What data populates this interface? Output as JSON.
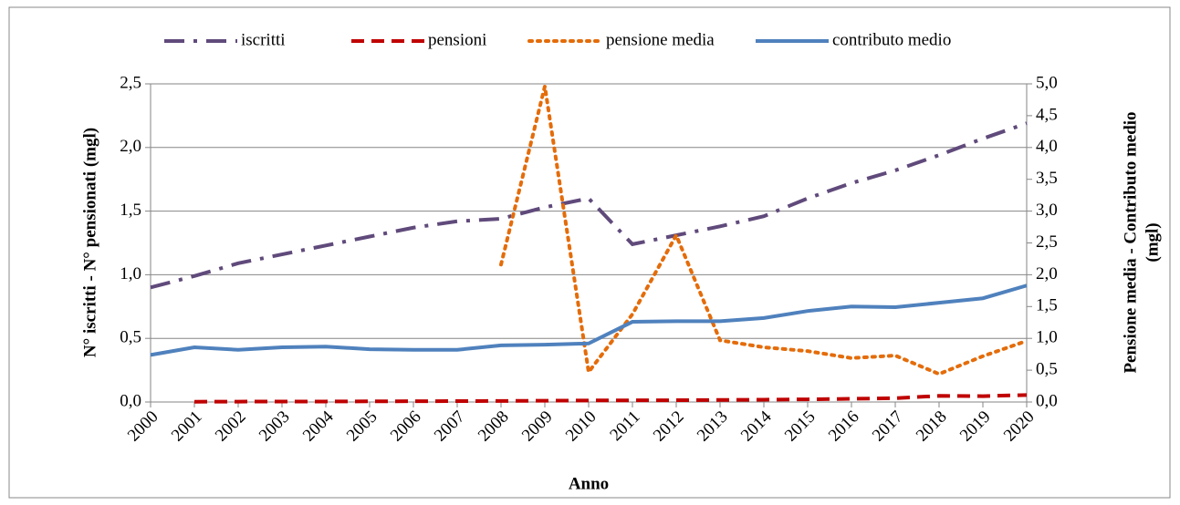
{
  "chart_data": {
    "type": "line",
    "categories": [
      "2000",
      "2001",
      "2002",
      "2003",
      "2004",
      "2005",
      "2006",
      "2007",
      "2008",
      "2009",
      "2010",
      "2011",
      "2012",
      "2013",
      "2014",
      "2015",
      "2016",
      "2017",
      "2018",
      "2019",
      "2020"
    ],
    "series": [
      {
        "name": "iscritti",
        "color": "#604a7b",
        "dash": "22 10 4 10",
        "axis": "y",
        "values": [
          0.9,
          0.99,
          1.09,
          1.16,
          1.23,
          1.3,
          1.37,
          1.42,
          1.44,
          1.53,
          1.6,
          1.24,
          1.31,
          1.38,
          1.46,
          1.6,
          1.72,
          1.82,
          1.94,
          2.07,
          2.19
        ]
      },
      {
        "name": "pensioni",
        "color": "#c00000",
        "dash": "14 8",
        "axis": "y",
        "values": [
          null,
          0.002,
          0.003,
          0.004,
          0.004,
          0.005,
          0.006,
          0.007,
          0.008,
          0.01,
          0.012,
          0.013,
          0.014,
          0.016,
          0.018,
          0.021,
          0.025,
          0.03,
          0.048,
          0.046,
          0.055
        ]
      },
      {
        "name": "pensione media",
        "color": "#e46c0a",
        "dash": "3 6",
        "axis": "y2",
        "values": [
          null,
          null,
          null,
          null,
          null,
          null,
          null,
          null,
          2.16,
          4.96,
          0.47,
          1.38,
          2.62,
          0.97,
          0.86,
          0.8,
          0.69,
          0.73,
          0.44,
          0.72,
          0.96
        ]
      },
      {
        "name": "contributo medio",
        "color": "#4f81bd",
        "dash": "none",
        "axis": "y2",
        "values": [
          0.74,
          0.86,
          0.82,
          0.86,
          0.87,
          0.83,
          0.82,
          0.82,
          0.89,
          0.9,
          0.92,
          1.26,
          1.27,
          1.27,
          1.32,
          1.43,
          1.5,
          1.49,
          1.56,
          1.63,
          1.83
        ]
      }
    ],
    "xlabel": "Anno",
    "ylabel": "N° iscritti - N° pensionati (mgl)",
    "y2label": [
      "Pensione media - Contributo medio",
      "(mgl)"
    ],
    "ylim": [
      0,
      2.5
    ],
    "yticks": [
      {
        "value": 0,
        "label": "0,0"
      },
      {
        "value": 0.5,
        "label": "0,5"
      },
      {
        "value": 1,
        "label": "1,0"
      },
      {
        "value": 1.5,
        "label": "1,5"
      },
      {
        "value": 2,
        "label": "2,0"
      },
      {
        "value": 2.5,
        "label": "2,5"
      }
    ],
    "y2lim": [
      0,
      5
    ],
    "y2ticks": [
      {
        "value": 0,
        "label": "0,0"
      },
      {
        "value": 0.5,
        "label": "0,5"
      },
      {
        "value": 1,
        "label": "1,0"
      },
      {
        "value": 1.5,
        "label": "1,5"
      },
      {
        "value": 2,
        "label": "2,0"
      },
      {
        "value": 2.5,
        "label": "2,5"
      },
      {
        "value": 3,
        "label": "3,0"
      },
      {
        "value": 3.5,
        "label": "3,5"
      },
      {
        "value": 4,
        "label": "4,0"
      },
      {
        "value": 4.5,
        "label": "4,5"
      },
      {
        "value": 5,
        "label": "5,0"
      }
    ],
    "grid": true,
    "legend": "top"
  }
}
